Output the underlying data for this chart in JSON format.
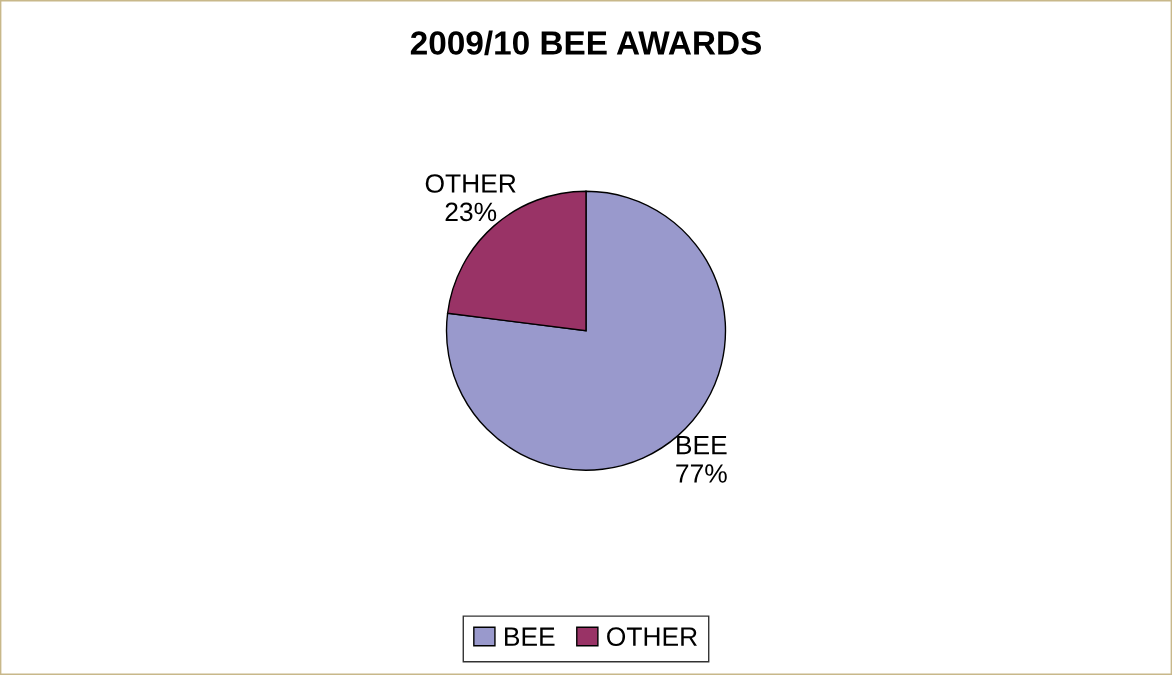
{
  "chart_data": {
    "type": "pie",
    "title": "2009/10 BEE AWARDS",
    "categories": [
      "BEE",
      "OTHER"
    ],
    "values": [
      77,
      23
    ],
    "value_labels": [
      "77%",
      "23%"
    ],
    "colors": [
      "#9999cc",
      "#993366"
    ],
    "legend": "bottom"
  }
}
